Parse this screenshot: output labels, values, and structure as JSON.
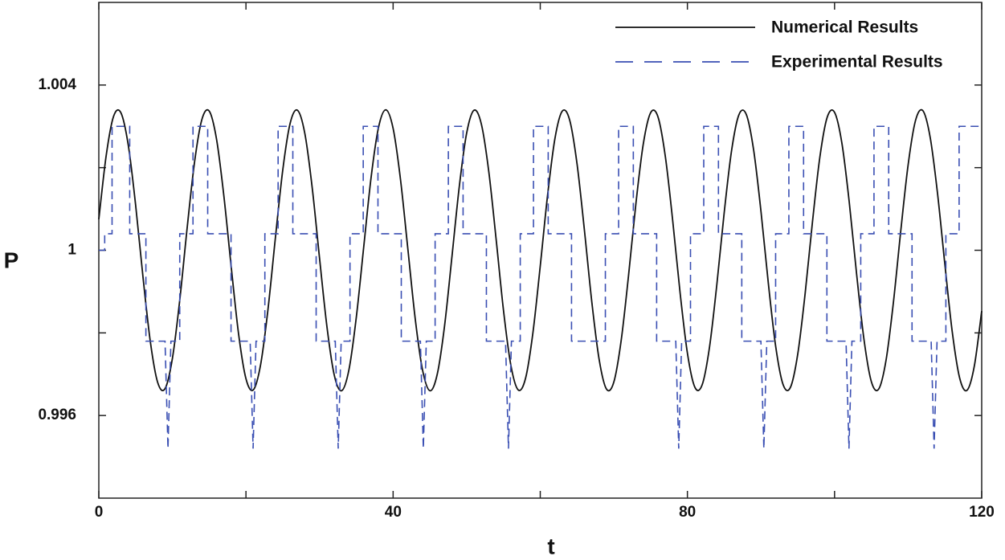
{
  "chart_data": {
    "type": "line",
    "xlabel": "t",
    "ylabel": "P",
    "xlim": [
      0,
      120
    ],
    "ylim": [
      0.994,
      1.006
    ],
    "xticks": [
      0,
      40,
      80,
      120
    ],
    "xminorticks": [
      20,
      60,
      100
    ],
    "yticks": [
      0.996,
      1,
      1.004
    ],
    "yminorticks": [
      0.998,
      1.002
    ],
    "legend": "upper right",
    "series": [
      {
        "name": "Numerical Results",
        "color": "#111111",
        "linestyle": "solid",
        "smooth": true,
        "x": [
          0,
          1,
          2,
          3,
          4,
          5,
          6,
          7,
          8,
          9,
          10,
          11,
          12,
          13,
          14,
          15,
          16,
          17,
          18,
          19,
          20,
          21,
          22,
          23,
          24,
          25,
          26,
          27,
          28,
          29,
          30,
          31,
          32,
          33,
          34,
          35,
          36,
          37,
          38,
          39,
          40,
          41,
          42,
          43,
          44,
          45,
          46,
          47,
          48,
          49,
          50,
          51,
          52,
          53,
          54,
          55,
          56,
          57,
          58,
          59,
          60,
          61,
          62,
          63,
          64,
          65,
          66,
          67,
          68,
          69,
          70,
          71,
          72,
          73,
          74,
          75,
          76,
          77,
          78,
          79,
          80,
          81,
          82,
          83,
          84,
          85,
          86,
          87,
          88,
          89,
          90,
          91,
          92,
          93,
          94,
          95,
          96,
          97,
          98,
          99,
          100,
          101,
          102,
          103,
          104,
          105,
          106,
          107,
          108,
          109,
          110,
          111,
          112,
          113,
          114,
          115,
          116,
          117,
          118,
          119,
          120
        ],
        "values": [
          1.00075,
          1.00229,
          1.00324,
          1.00333,
          1.00255,
          1.0011,
          0.99936,
          0.99779,
          0.9968,
          0.99665,
          0.99738,
          0.99879,
          1.00053,
          1.00212,
          1.00316,
          1.00337,
          1.00269,
          1.00131,
          0.99959,
          0.99797,
          0.99689,
          0.99662,
          0.99724,
          0.99858,
          1.0003,
          1.00194,
          1.00307,
          1.00339,
          1.00283,
          1.00152,
          0.99981,
          0.99816,
          0.99698,
          0.9966,
          0.99711,
          0.99838,
          1.00007,
          1.00175,
          1.00296,
          1.0034,
          1.00295,
          1.00172,
          1.00004,
          0.99835,
          0.9971,
          0.9966,
          0.997,
          0.99818,
          0.99985,
          1.00155,
          1.00284,
          1.00339,
          1.00305,
          1.00191,
          1.00027,
          0.99855,
          0.99722,
          0.99662,
          0.9969,
          0.998,
          0.99962,
          1.00134,
          1.00271,
          1.00337,
          1.00315,
          1.00209,
          1.00049,
          0.99876,
          0.99736,
          0.99664,
          0.99681,
          0.99782,
          0.99939,
          1.00113,
          1.00257,
          1.00333,
          1.00323,
          1.00227,
          1.00072,
          0.99898,
          0.99751,
          0.99669,
          0.99674,
          0.99765,
          0.99917,
          1.00091,
          1.00241,
          1.00328,
          1.00329,
          1.00243,
          1.00094,
          0.9992,
          0.99767,
          0.99675,
          0.99668,
          0.99749,
          0.99895,
          1.00069,
          1.00225,
          1.00322,
          1.00334,
          1.00259,
          1.00116,
          0.99942,
          0.99784,
          0.99682,
          0.99664,
          0.99734,
          0.99874,
          1.00047,
          1.00207,
          1.00314,
          1.00338,
          1.00273,
          1.00137,
          0.99965,
          0.99802,
          0.99691,
          0.99661,
          0.9972,
          0.99853
        ]
      },
      {
        "name": "Experimental Results",
        "color": "#3a4fb3",
        "linestyle": "dashed",
        "smooth": false,
        "x": [
          0,
          0.8,
          0.8,
          1.8,
          1.8,
          4.2,
          4.2,
          6.4,
          6.4,
          9,
          9.4,
          9.8,
          11,
          11,
          12.8,
          12.8,
          14.8,
          14.8,
          17.97,
          17.97,
          20.57,
          20.97,
          21.37,
          22.57,
          22.57,
          24.37,
          24.37,
          26.37,
          26.37,
          29.54,
          29.54,
          32.14,
          32.54,
          32.94,
          34.14,
          34.14,
          35.94,
          35.94,
          37.94,
          37.94,
          41.11,
          41.11,
          43.71,
          44.11,
          44.51,
          45.71,
          45.71,
          47.51,
          47.51,
          49.51,
          49.51,
          52.68,
          52.68,
          55.28,
          55.68,
          56.08,
          57.28,
          57.28,
          59.08,
          59.08,
          61.08,
          61.08,
          64.25,
          64.25,
          66.85,
          67.25,
          67.65,
          68.85,
          68.85,
          70.65,
          70.65,
          72.65,
          72.65,
          75.82,
          75.82,
          78.42,
          78.82,
          79.22,
          80.42,
          80.42,
          82.22,
          82.22,
          84.22,
          84.22,
          87.39,
          87.39,
          89.99,
          90.39,
          90.79,
          91.99,
          91.99,
          93.79,
          93.79,
          95.79,
          95.79,
          98.96,
          98.96,
          101.56,
          101.96,
          102.36,
          103.56,
          103.56,
          105.36,
          105.36,
          107.36,
          107.36,
          110.53,
          110.53,
          113.13,
          113.53,
          113.93,
          115.13,
          115.13,
          116.93,
          116.93,
          120
        ],
        "values": [
          1,
          1,
          1.0004,
          1.0004,
          1.003,
          1.003,
          1.0004,
          1.0004,
          0.9978,
          0.9978,
          0.9952,
          0.9978,
          0.9978,
          1.0004,
          1.0004,
          1.003,
          1.003,
          1.0004,
          1.0004,
          0.9978,
          0.9978,
          0.9952,
          0.9978,
          0.9978,
          1.0004,
          1.0004,
          1.003,
          1.003,
          1.0004,
          1.0004,
          0.9978,
          0.9978,
          0.9952,
          0.9978,
          0.9978,
          1.0004,
          1.0004,
          1.003,
          1.003,
          1.0004,
          1.0004,
          0.9978,
          0.9978,
          0.9952,
          0.9978,
          0.9978,
          1.0004,
          1.0004,
          1.003,
          1.003,
          1.0004,
          1.0004,
          0.9978,
          0.9978,
          0.9952,
          0.9978,
          0.9978,
          1.0004,
          1.0004,
          1.003,
          1.003,
          1.0004,
          1.0004,
          0.9978,
          0.9978,
          0.9978,
          0.9978,
          0.9978,
          1.0004,
          1.0004,
          1.003,
          1.003,
          1.0004,
          1.0004,
          0.9978,
          0.9978,
          0.9952,
          0.9978,
          0.9978,
          1.0004,
          1.0004,
          1.003,
          1.003,
          1.0004,
          1.0004,
          0.9978,
          0.9978,
          0.9952,
          0.9978,
          0.9978,
          1.0004,
          1.0004,
          1.003,
          1.003,
          1.0004,
          1.0004,
          0.9978,
          0.9978,
          0.9952,
          0.9978,
          0.9978,
          1.0004,
          1.0004,
          1.003,
          1.003,
          1.0004,
          1.0004,
          0.9978,
          0.9978,
          0.9952,
          0.9978,
          0.9978,
          1.0004,
          1.0004,
          1.003,
          1.003
        ]
      }
    ]
  }
}
